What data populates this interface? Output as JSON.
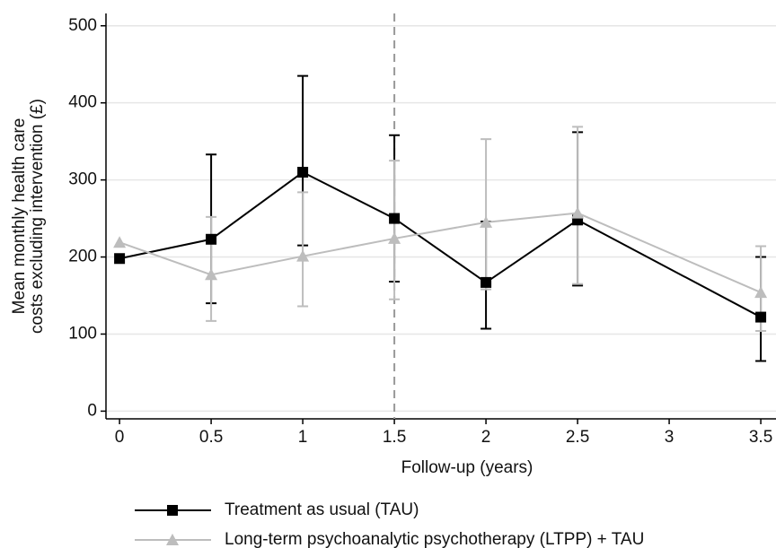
{
  "chart_data": {
    "type": "line",
    "x_label": "Follow-up (years)",
    "y_label": [
      "Mean monthly health care",
      "costs excluding intervention (£)"
    ],
    "series": [
      {
        "name": "Treatment as usual (TAU)",
        "color": "#000000",
        "marker": "square",
        "x": [
          0,
          0.5,
          1,
          1.5,
          2,
          2.5,
          3.5
        ],
        "values": [
          198,
          223,
          310,
          250,
          167,
          248,
          122
        ],
        "lower": [
          null,
          140,
          215,
          168,
          107,
          163,
          65
        ],
        "upper": [
          null,
          333,
          435,
          358,
          246,
          362,
          200
        ]
      },
      {
        "name": "Long-term psychoanalytic psychotherapy (LTPP) + TAU",
        "color": "#bdbdbd",
        "marker": "triangle",
        "x": [
          0,
          0.5,
          1,
          1.5,
          2,
          2.5,
          3.5
        ],
        "values": [
          219,
          177,
          201,
          224,
          245,
          257,
          154
        ],
        "lower": [
          null,
          117,
          136,
          145,
          158,
          165,
          104
        ],
        "upper": [
          null,
          252,
          284,
          325,
          353,
          369,
          214
        ]
      }
    ],
    "xlim": [
      -0.074,
      3.583
    ],
    "xticks": [
      0,
      0.5,
      1,
      1.5,
      2,
      2.5,
      3,
      3.5
    ],
    "ylim": [
      -10,
      516
    ],
    "yticks": [
      0,
      100,
      200,
      300,
      400,
      500
    ],
    "grid": true,
    "vline": 1.5
  }
}
